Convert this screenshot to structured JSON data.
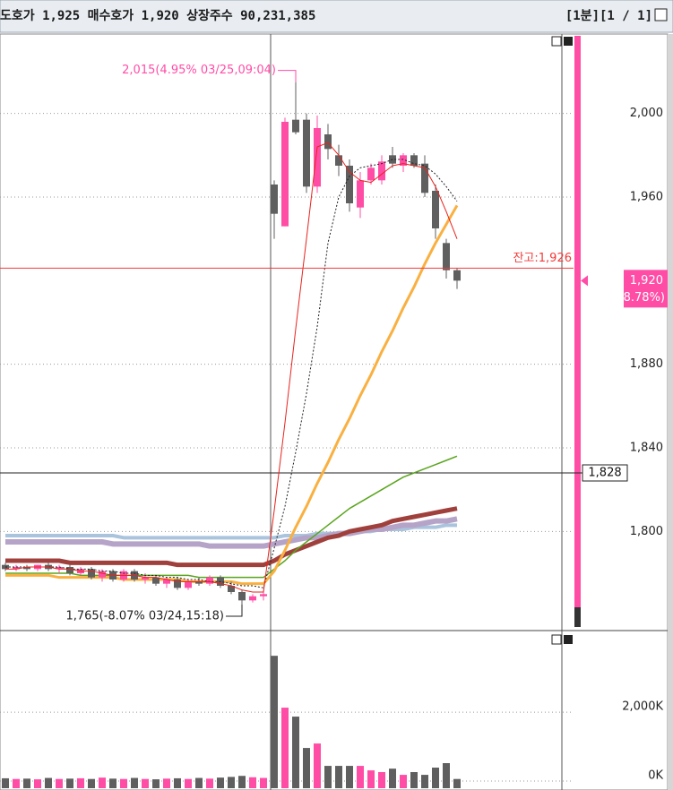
{
  "header": {
    "quote": "도호가 1,925 매수호가 1,920 상장주수 90,231,385",
    "period": "[1분][1 / 1]"
  },
  "chart_data": {
    "type": "candlestick",
    "up_color": "#ff4da6",
    "down_color": "#5f5f5f",
    "open": [
      1784,
      1782,
      1783,
      1782,
      1784,
      1782,
      1783,
      1780,
      1782,
      1778,
      1781,
      1777,
      1781,
      1777,
      1778,
      1775,
      1777,
      1773,
      1776,
      1775,
      1778,
      1774,
      1771,
      1767,
      1769,
      1966,
      1946,
      1997,
      1997,
      1965,
      1990,
      1980,
      1975,
      1955,
      1968,
      1968,
      1980,
      1975,
      1980,
      1976,
      1963,
      1938,
      1925
    ],
    "high": [
      1785,
      1784,
      1784,
      1784,
      1785,
      1784,
      1784,
      1783,
      1783,
      1782,
      1782,
      1782,
      1782,
      1780,
      1779,
      1778,
      1778,
      1777,
      1778,
      1779,
      1779,
      1776,
      1772,
      1770,
      1772,
      1968,
      1998,
      2015,
      2000,
      1999,
      1995,
      1985,
      1978,
      1972,
      1976,
      1980,
      1984,
      1981,
      1981,
      1980,
      1966,
      1940,
      1926
    ],
    "low": [
      1781,
      1781,
      1781,
      1781,
      1781,
      1780,
      1779,
      1779,
      1777,
      1776,
      1776,
      1776,
      1776,
      1775,
      1774,
      1773,
      1772,
      1772,
      1774,
      1774,
      1773,
      1770,
      1765,
      1766,
      1767,
      1940,
      1946,
      1990,
      1962,
      1962,
      1978,
      1970,
      1953,
      1950,
      1966,
      1966,
      1974,
      1972,
      1974,
      1960,
      1940,
      1921,
      1916
    ],
    "close": [
      1782,
      1783,
      1782,
      1784,
      1782,
      1783,
      1780,
      1782,
      1778,
      1781,
      1777,
      1781,
      1777,
      1778,
      1775,
      1777,
      1773,
      1776,
      1775,
      1778,
      1774,
      1771,
      1767,
      1769,
      1770,
      1952,
      1996,
      1991,
      1965,
      1993,
      1983,
      1975,
      1957,
      1968,
      1974,
      1977,
      1976,
      1980,
      1975,
      1962,
      1945,
      1925,
      1920
    ],
    "ylim": [
      1753,
      2038
    ],
    "yticks": [
      {
        "value": 2000,
        "label": "2,000"
      },
      {
        "value": 1960,
        "label": "1,960"
      },
      {
        "value": 1880,
        "label": "1,880"
      },
      {
        "value": 1840,
        "label": "1,840"
      },
      {
        "value": 1800,
        "label": "1,800"
      }
    ],
    "grid": true,
    "lines": [
      {
        "color": "#a9c4dc",
        "width": 4,
        "values": [
          1798,
          1798,
          1798,
          1798,
          1798,
          1798,
          1798,
          1798,
          1798,
          1798,
          1798,
          1797,
          1797,
          1797,
          1797,
          1797,
          1797,
          1797,
          1797,
          1797,
          1797,
          1797,
          1797,
          1797,
          1797,
          1797,
          1798,
          1798,
          1798,
          1799,
          1799,
          1799,
          1800,
          1800,
          1800,
          1801,
          1801,
          1801,
          1802,
          1802,
          1802,
          1803,
          1803
        ]
      },
      {
        "color": "#b6a4c8",
        "width": 6,
        "values": [
          1795,
          1795,
          1795,
          1795,
          1795,
          1795,
          1795,
          1795,
          1795,
          1795,
          1794,
          1794,
          1794,
          1794,
          1794,
          1794,
          1794,
          1794,
          1794,
          1793,
          1793,
          1793,
          1793,
          1793,
          1793,
          1794,
          1795,
          1796,
          1797,
          1797,
          1798,
          1799,
          1799,
          1800,
          1801,
          1801,
          1802,
          1803,
          1803,
          1804,
          1805,
          1805,
          1806
        ]
      },
      {
        "color": "#a0403c",
        "width": 5,
        "values": [
          1786,
          1786,
          1786,
          1786,
          1786,
          1786,
          1785,
          1785,
          1785,
          1785,
          1785,
          1785,
          1785,
          1785,
          1785,
          1785,
          1784,
          1784,
          1784,
          1784,
          1784,
          1784,
          1784,
          1784,
          1784,
          1786,
          1789,
          1791,
          1793,
          1795,
          1797,
          1798,
          1800,
          1801,
          1802,
          1803,
          1805,
          1806,
          1807,
          1808,
          1809,
          1810,
          1811
        ]
      },
      {
        "color": "#5aa51e",
        "width": 1.5,
        "values": [
          1780,
          1780,
          1780,
          1780,
          1780,
          1780,
          1780,
          1779,
          1779,
          1779,
          1779,
          1779,
          1779,
          1779,
          1779,
          1779,
          1779,
          1779,
          1778,
          1778,
          1778,
          1778,
          1778,
          1778,
          1778,
          1782,
          1786,
          1791,
          1795,
          1799,
          1803,
          1807,
          1811,
          1814,
          1817,
          1820,
          1823,
          1826,
          1828,
          1830,
          1832,
          1834,
          1836
        ]
      },
      {
        "color": "#f9b040",
        "width": 3,
        "values": [
          1779,
          1779,
          1779,
          1779,
          1779,
          1778,
          1778,
          1778,
          1778,
          1778,
          1778,
          1777,
          1777,
          1777,
          1777,
          1777,
          1777,
          1776,
          1776,
          1776,
          1776,
          1776,
          1775,
          1775,
          1775,
          1781,
          1791,
          1802,
          1812,
          1823,
          1833,
          1844,
          1854,
          1865,
          1875,
          1886,
          1896,
          1907,
          1917,
          1928,
          1938,
          1947,
          1956
        ]
      },
      {
        "color": "#222222",
        "width": 1,
        "dashed": true,
        "values": [
          1783,
          1783,
          1783,
          1783,
          1783,
          1783,
          1782,
          1782,
          1782,
          1781,
          1781,
          1780,
          1780,
          1779,
          1779,
          1778,
          1778,
          1777,
          1777,
          1776,
          1776,
          1775,
          1774,
          1774,
          1773,
          1792,
          1812,
          1838,
          1866,
          1898,
          1938,
          1960,
          1970,
          1974,
          1975,
          1976,
          1978,
          1978,
          1976,
          1975,
          1971,
          1965,
          1958
        ]
      },
      {
        "color": "#e8221c",
        "width": 1,
        "values": [
          1782,
          1782,
          1783,
          1783,
          1783,
          1782,
          1782,
          1781,
          1781,
          1780,
          1779,
          1779,
          1779,
          1778,
          1778,
          1777,
          1776,
          1776,
          1776,
          1776,
          1775,
          1774,
          1772,
          1771,
          1771,
          1810,
          1852,
          1897,
          1940,
          1984,
          1986,
          1980,
          1972,
          1968,
          1967,
          1971,
          1975,
          1976,
          1975,
          1974,
          1965,
          1953,
          1940
        ]
      }
    ],
    "balance_line": {
      "value": 1926,
      "label": "잔고:1,926",
      "color": "#f23a3a"
    },
    "crosshair": {
      "value": 1828,
      "label": "1,828"
    },
    "current_price": {
      "value": 1920,
      "label": "1,920",
      "change": "( 8.78%)",
      "color": "#ff4da6"
    },
    "annotations": [
      {
        "text": "2,015(4.95% 03/25,09:04)",
        "value": 2015,
        "color": "#ff4da6"
      },
      {
        "text": "1,765(-8.07% 03/24,15:18)",
        "value": 1765,
        "color": "#222222"
      }
    ],
    "volume": {
      "values": [
        80,
        60,
        70,
        50,
        90,
        60,
        70,
        80,
        60,
        100,
        70,
        60,
        90,
        60,
        50,
        70,
        80,
        60,
        90,
        70,
        100,
        120,
        150,
        110,
        90,
        3636,
        2130,
        1870,
        960,
        1090,
        440,
        440,
        440,
        440,
        310,
        260,
        360,
        180,
        260,
        180,
        390,
        520,
        60
      ],
      "ylim": [
        0,
        4290
      ],
      "yticks": [
        {
          "value": 2000,
          "label": "2,000K"
        },
        {
          "value": 0,
          "label": "0K"
        }
      ]
    }
  }
}
